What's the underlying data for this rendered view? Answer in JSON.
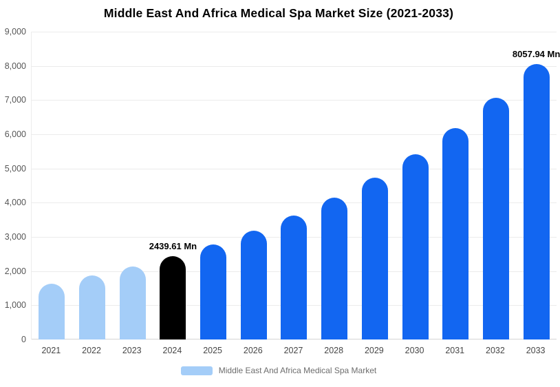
{
  "chart_data": {
    "type": "bar",
    "title": "Middle East And Africa Medical Spa Market Size (2021-2033)",
    "categories": [
      "2021",
      "2022",
      "2023",
      "2024",
      "2025",
      "2026",
      "2027",
      "2028",
      "2029",
      "2030",
      "2031",
      "2032",
      "2033"
    ],
    "values": [
      1638,
      1871,
      2136,
      2439.61,
      2786,
      3182,
      3634,
      4150,
      4739,
      5412,
      6181,
      7058,
      8057.94
    ],
    "bar_colors": [
      "#A4CDF8",
      "#A4CDF8",
      "#A4CDF8",
      "#000000",
      "#1266F1",
      "#1266F1",
      "#1266F1",
      "#1266F1",
      "#1266F1",
      "#1266F1",
      "#1266F1",
      "#1266F1",
      "#1266F1"
    ],
    "annotations": [
      {
        "category": "2024",
        "text": "2439.61 Mn"
      },
      {
        "category": "2033",
        "text": "8057.94 Mn"
      }
    ],
    "xlabel": "",
    "ylabel": "",
    "ylim": [
      0,
      9000
    ],
    "ytick_step": 1000,
    "ytick_labels": [
      "0",
      "1,000",
      "2,000",
      "3,000",
      "4,000",
      "5,000",
      "6,000",
      "7,000",
      "8,000",
      "9,000"
    ],
    "grid": true,
    "legend": {
      "label": "Middle East And Africa Medical Spa Market",
      "swatch_color": "#A4CDF8",
      "position": "bottom"
    }
  }
}
